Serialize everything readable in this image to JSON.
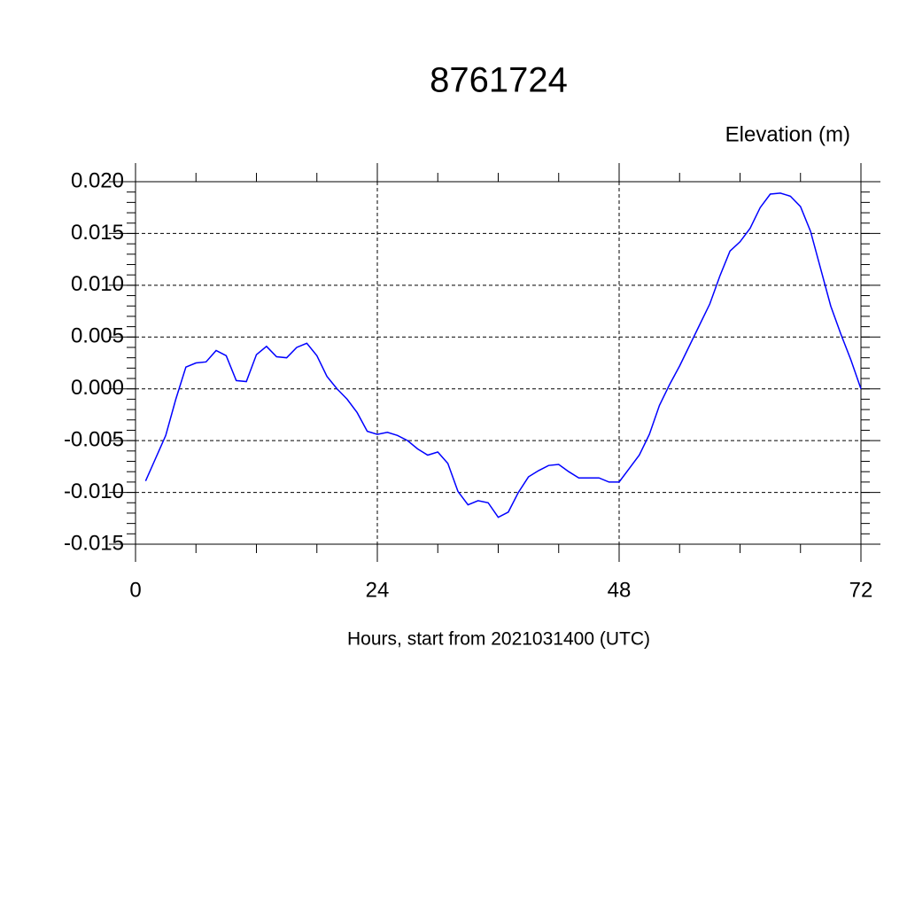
{
  "chart_data": {
    "type": "line",
    "title": "8761724",
    "ylabel": "Elevation (m)",
    "xlabel": "Hours, start from 2021031400 (UTC)",
    "x": [
      1,
      2,
      3,
      4,
      5,
      6,
      7,
      8,
      9,
      10,
      11,
      12,
      13,
      14,
      15,
      16,
      17,
      18,
      19,
      20,
      21,
      22,
      23,
      24,
      25,
      26,
      27,
      28,
      29,
      30,
      31,
      32,
      33,
      34,
      35,
      36,
      37,
      38,
      39,
      40,
      41,
      42,
      43,
      44,
      45,
      46,
      47,
      48,
      49,
      50,
      51,
      52,
      53,
      54,
      55,
      56,
      57,
      58,
      59,
      60,
      61,
      62,
      63,
      64,
      65,
      66,
      67,
      68,
      69,
      70,
      71,
      72
    ],
    "series": [
      {
        "name": "Elevation",
        "color": "#0000ff",
        "values": [
          -0.0089,
          -0.0067,
          -0.0045,
          -0.001,
          0.0021,
          0.0025,
          0.0026,
          0.0037,
          0.0032,
          0.0008,
          0.0007,
          0.0033,
          0.0041,
          0.0031,
          0.003,
          0.004,
          0.0044,
          0.0032,
          0.0012,
          0.0,
          -0.001,
          -0.0023,
          -0.0041,
          -0.0044,
          -0.0042,
          -0.0045,
          -0.005,
          -0.0058,
          -0.0064,
          -0.0061,
          -0.0072,
          -0.0099,
          -0.0112,
          -0.0108,
          -0.011,
          -0.0124,
          -0.0119,
          -0.01,
          -0.0085,
          -0.0079,
          -0.0074,
          -0.0073,
          -0.008,
          -0.0086,
          -0.0086,
          -0.0086,
          -0.009,
          -0.009,
          -0.0077,
          -0.0064,
          -0.0044,
          -0.0016,
          0.0004,
          0.0022,
          0.0042,
          0.0062,
          0.0082,
          0.0109,
          0.0133,
          0.0142,
          0.0155,
          0.0175,
          0.0188,
          0.0189,
          0.0186,
          0.0176,
          0.0152,
          0.0116,
          0.008,
          0.0053,
          0.0028,
          0.0
        ]
      }
    ],
    "xlim": [
      0,
      72
    ],
    "xticks": [
      0,
      24,
      48,
      72
    ],
    "ylim": [
      -0.015,
      0.02
    ],
    "yticks": [
      {
        "value": -0.015,
        "label": "-0.015"
      },
      {
        "value": -0.01,
        "label": "-0.010"
      },
      {
        "value": -0.005,
        "label": "-0.005"
      },
      {
        "value": 0,
        "label": "0.000"
      },
      {
        "value": 0.005,
        "label": "0.005"
      },
      {
        "value": 0.01,
        "label": "0.010"
      },
      {
        "value": 0.015,
        "label": "0.015"
      },
      {
        "value": 0.02,
        "label": "0.020"
      }
    ],
    "grid": true
  }
}
